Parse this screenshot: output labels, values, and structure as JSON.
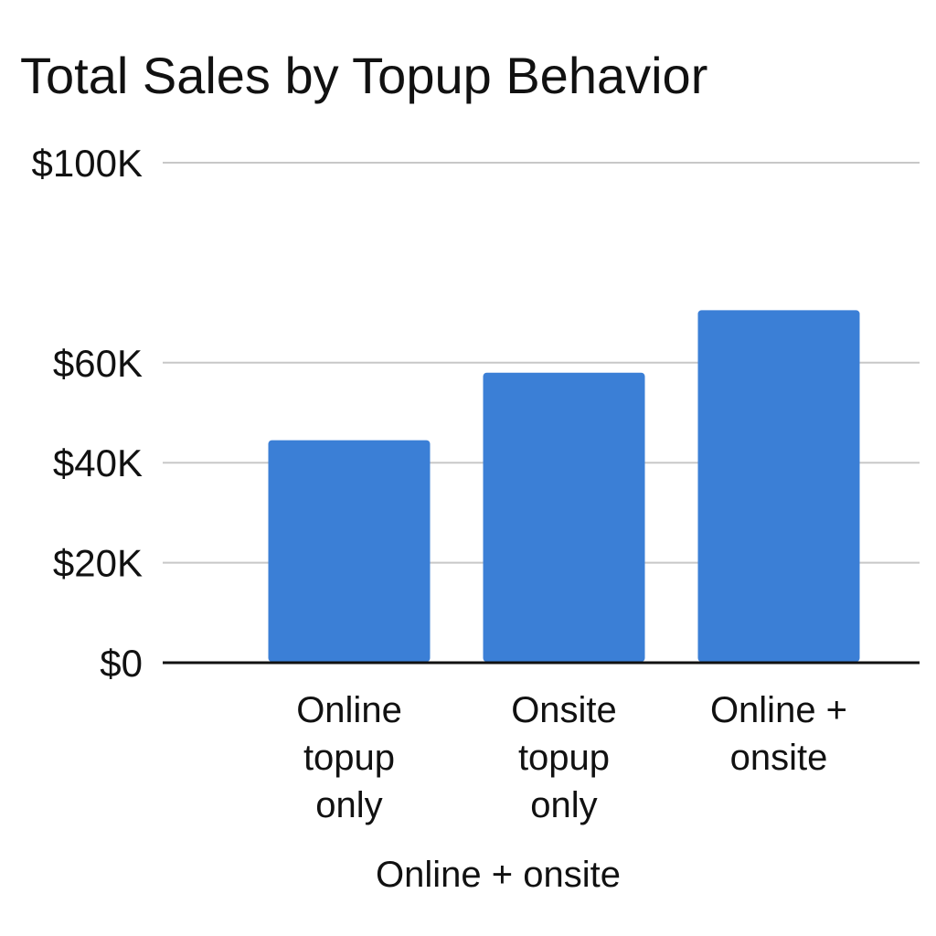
{
  "chart_data": {
    "type": "bar",
    "title": "Total Sales by Topup Behavior",
    "xlabel": "Online + onsite",
    "ylabel": "",
    "categories": [
      "Online topup only",
      "Onsite topup only",
      "Online + onsite"
    ],
    "category_lines": [
      [
        "Online",
        "topup",
        "only"
      ],
      [
        "Onsite",
        "topup",
        "only"
      ],
      [
        "Online +",
        "onsite"
      ]
    ],
    "values": [
      44500,
      58000,
      70500
    ],
    "ylim": [
      0,
      100000
    ],
    "y_ticks": [
      {
        "value": 0,
        "label": "$0"
      },
      {
        "value": 20000,
        "label": "$20K"
      },
      {
        "value": 40000,
        "label": "$40K"
      },
      {
        "value": 60000,
        "label": "$60K"
      },
      {
        "value": 100000,
        "label": "$100K"
      }
    ],
    "grid": true,
    "legend": "none",
    "bar_color": "#3b7fd6"
  }
}
